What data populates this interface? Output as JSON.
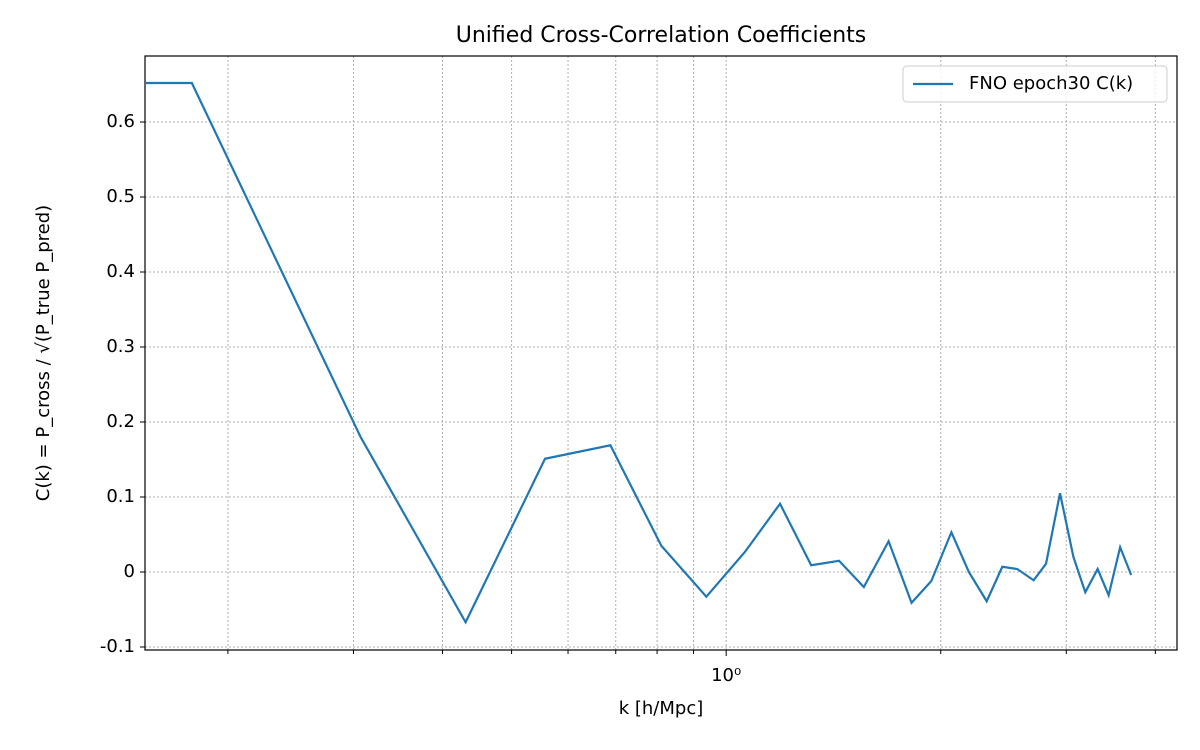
{
  "chart_data": {
    "type": "line",
    "title": "Unified Cross-Correlation Coefficients",
    "xlabel": "k [h/Mpc]",
    "ylabel": "C(k) = P_cross / √(P_true P_pred)",
    "x": [
      0.153,
      0.178,
      0.307,
      0.431,
      0.557,
      0.688,
      0.811,
      0.938,
      1.063,
      1.19,
      1.316,
      1.44,
      1.56,
      1.69,
      1.82,
      1.94,
      2.07,
      2.19,
      2.32,
      2.44,
      2.56,
      2.7,
      2.81,
      2.94,
      3.07,
      3.19,
      3.32,
      3.44,
      3.57,
      3.7
    ],
    "series": [
      {
        "name": "FNO epoch30 C(k)",
        "color": "#1f77b4",
        "values": [
          0.652,
          0.652,
          0.18,
          -0.067,
          0.151,
          0.169,
          0.035,
          -0.033,
          0.027,
          0.091,
          0.009,
          0.015,
          -0.02,
          0.041,
          -0.041,
          -0.012,
          0.053,
          0.0,
          -0.039,
          0.007,
          0.004,
          -0.011,
          0.011,
          0.105,
          0.02,
          -0.027,
          0.004,
          -0.031,
          0.033,
          -0.004
        ]
      }
    ],
    "xscale": "log",
    "xlim": [
      0.153,
      4.29
    ],
    "xticks": [
      {
        "value": 1,
        "label": "10⁰"
      }
    ],
    "xminorticks": [
      0.2,
      0.3,
      0.4,
      0.5,
      0.6,
      0.7,
      0.8,
      0.9,
      2,
      3,
      4
    ],
    "ylim": [
      -0.104,
      0.688
    ],
    "yticks": [
      -0.1,
      0.0,
      0.1,
      0.2,
      0.3,
      0.4,
      0.5,
      0.6
    ],
    "grid": true,
    "legend": "upper right"
  }
}
